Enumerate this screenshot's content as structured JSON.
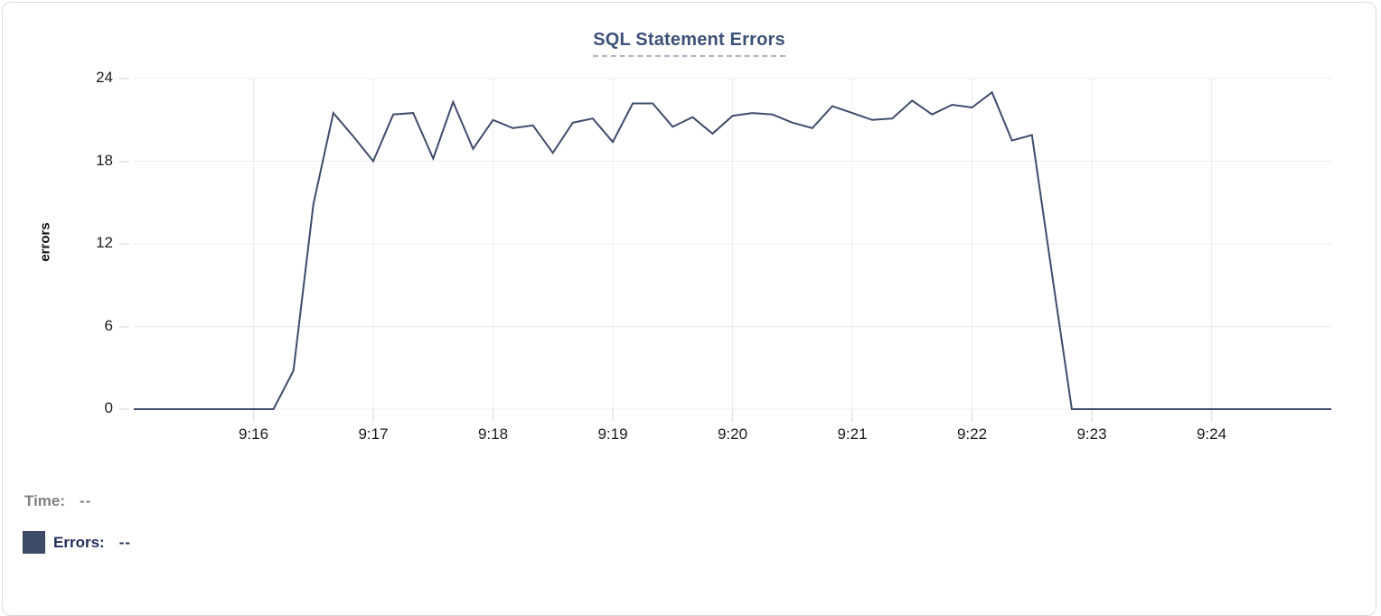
{
  "chart_data": {
    "type": "line",
    "title": "SQL Statement Errors",
    "xlabel": "",
    "ylabel": "errors",
    "ylim": [
      0,
      24
    ],
    "y_ticks": [
      24,
      18,
      12,
      6,
      0
    ],
    "x_ticks": [
      "9:16",
      "9:17",
      "9:18",
      "9:19",
      "9:20",
      "9:21",
      "9:22",
      "9:23",
      "9:24"
    ],
    "x_domain": [
      "9:15:00",
      "9:25:00"
    ],
    "sample_interval_seconds": 10,
    "grid": true,
    "legend_position": "bottom-left",
    "series": [
      {
        "name": "Errors",
        "color": "#3e4c6a",
        "values": [
          0,
          0,
          0,
          0,
          0,
          0,
          0,
          0,
          2.8,
          14.9,
          21.5,
          19.8,
          18,
          21.4,
          21.5,
          18.2,
          22.3,
          18.9,
          21,
          20.4,
          20.6,
          18.6,
          20.8,
          21.1,
          19.4,
          22.2,
          22.2,
          20.5,
          21.2,
          20,
          21.3,
          21.5,
          21.4,
          20.8,
          20.4,
          22,
          21.5,
          21,
          21.1,
          22.4,
          21.4,
          22.1,
          21.9,
          23,
          19.5,
          19.9,
          9.9,
          0,
          0,
          0,
          0,
          0,
          0,
          0,
          0,
          0,
          0,
          0,
          0,
          0,
          0
        ]
      }
    ]
  },
  "legend": {
    "time_label": "Time:",
    "time_value": "--",
    "errors_label": "Errors:",
    "errors_value": "--",
    "swatch_color": "#3e4c68"
  },
  "colors": {
    "line": "#3e4c6a",
    "grid": "#ececee",
    "axis_tick": "#e2e2e6",
    "title": "#3d5176",
    "title_underline": "#a9b6c9",
    "axis_text": "#1b1b1d",
    "muted_text": "#7f7f85",
    "legend_text": "#232d5a",
    "card_border": "#d9dade"
  }
}
